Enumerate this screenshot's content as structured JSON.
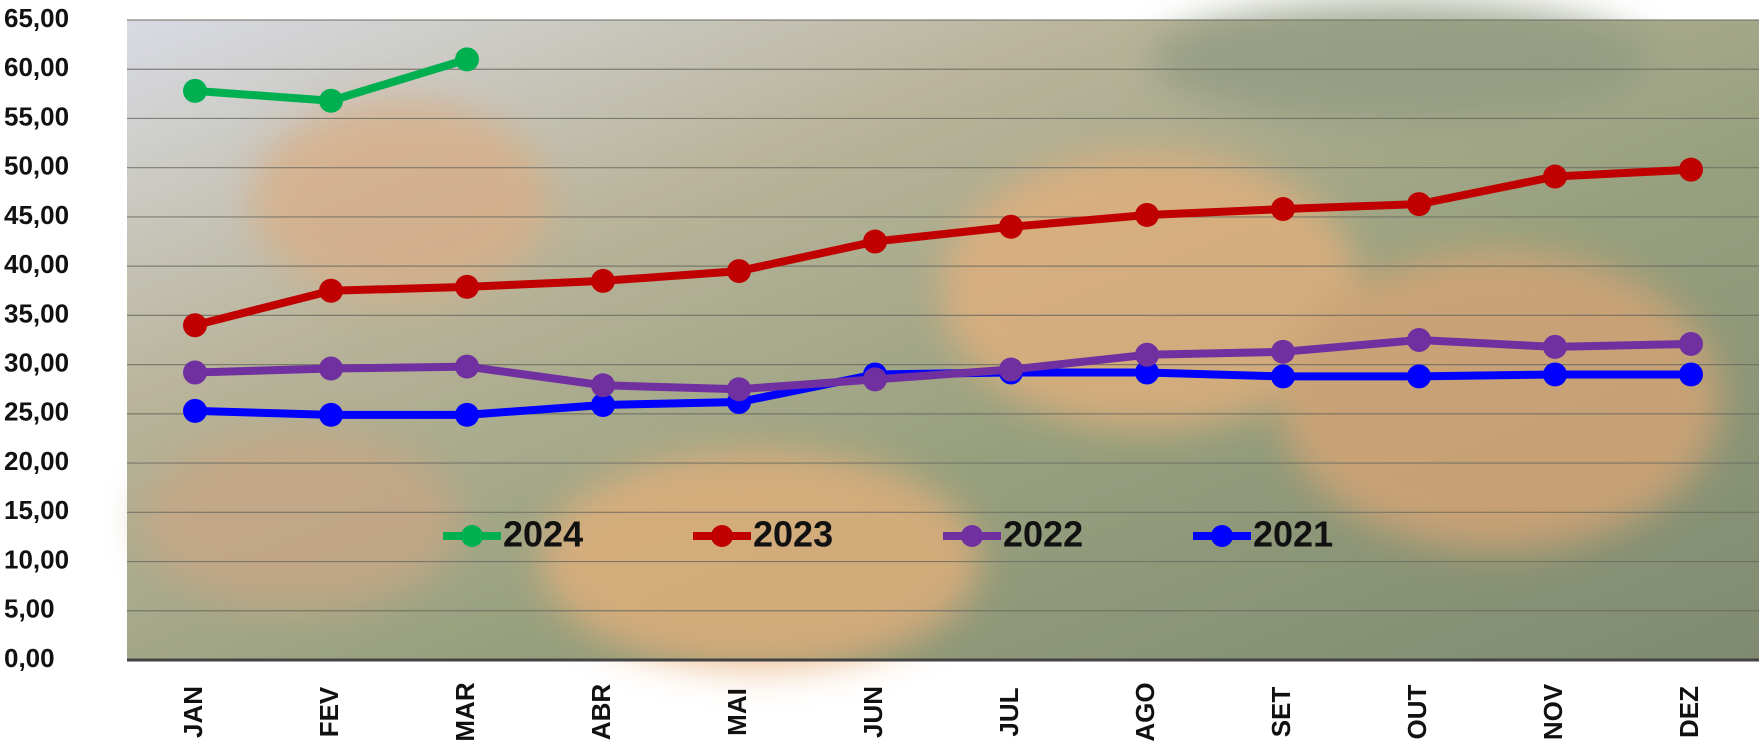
{
  "chart_data": {
    "type": "line",
    "categories": [
      "JAN",
      "FEV",
      "MAR",
      "ABR",
      "MAI",
      "JUN",
      "JUL",
      "AGO",
      "SET",
      "OUT",
      "NOV",
      "DEZ"
    ],
    "series": [
      {
        "name": "2024",
        "color": "#00b050",
        "values": [
          57.8,
          56.8,
          61.0,
          null,
          null,
          null,
          null,
          null,
          null,
          null,
          null,
          null
        ]
      },
      {
        "name": "2023",
        "color": "#c00000",
        "values": [
          34.0,
          37.5,
          37.9,
          38.5,
          39.5,
          42.5,
          44.0,
          45.2,
          45.8,
          46.3,
          49.1,
          49.8
        ]
      },
      {
        "name": "2022",
        "color": "#7030a0",
        "values": [
          29.2,
          29.6,
          29.8,
          27.9,
          27.5,
          28.5,
          29.5,
          31.0,
          31.3,
          32.5,
          31.8,
          32.1
        ]
      },
      {
        "name": "2021",
        "color": "#0000ff",
        "values": [
          25.3,
          24.9,
          24.9,
          25.9,
          26.2,
          29.0,
          29.2,
          29.2,
          28.8,
          28.8,
          29.0,
          29.0
        ]
      }
    ],
    "ylim": [
      0,
      65
    ],
    "yticks": [
      {
        "value": 0,
        "label": "0,00"
      },
      {
        "value": 5,
        "label": "5,00"
      },
      {
        "value": 10,
        "label": "10,00"
      },
      {
        "value": 15,
        "label": "15,00"
      },
      {
        "value": 20,
        "label": "20,00"
      },
      {
        "value": 25,
        "label": "25,00"
      },
      {
        "value": 30,
        "label": "30,00"
      },
      {
        "value": 35,
        "label": "35,00"
      },
      {
        "value": 40,
        "label": "40,00"
      },
      {
        "value": 45,
        "label": "45,00"
      },
      {
        "value": 50,
        "label": "50,00"
      },
      {
        "value": 55,
        "label": "55,00"
      },
      {
        "value": 60,
        "label": "60,00"
      },
      {
        "value": 65,
        "label": "65,00"
      }
    ],
    "grid": true
  }
}
